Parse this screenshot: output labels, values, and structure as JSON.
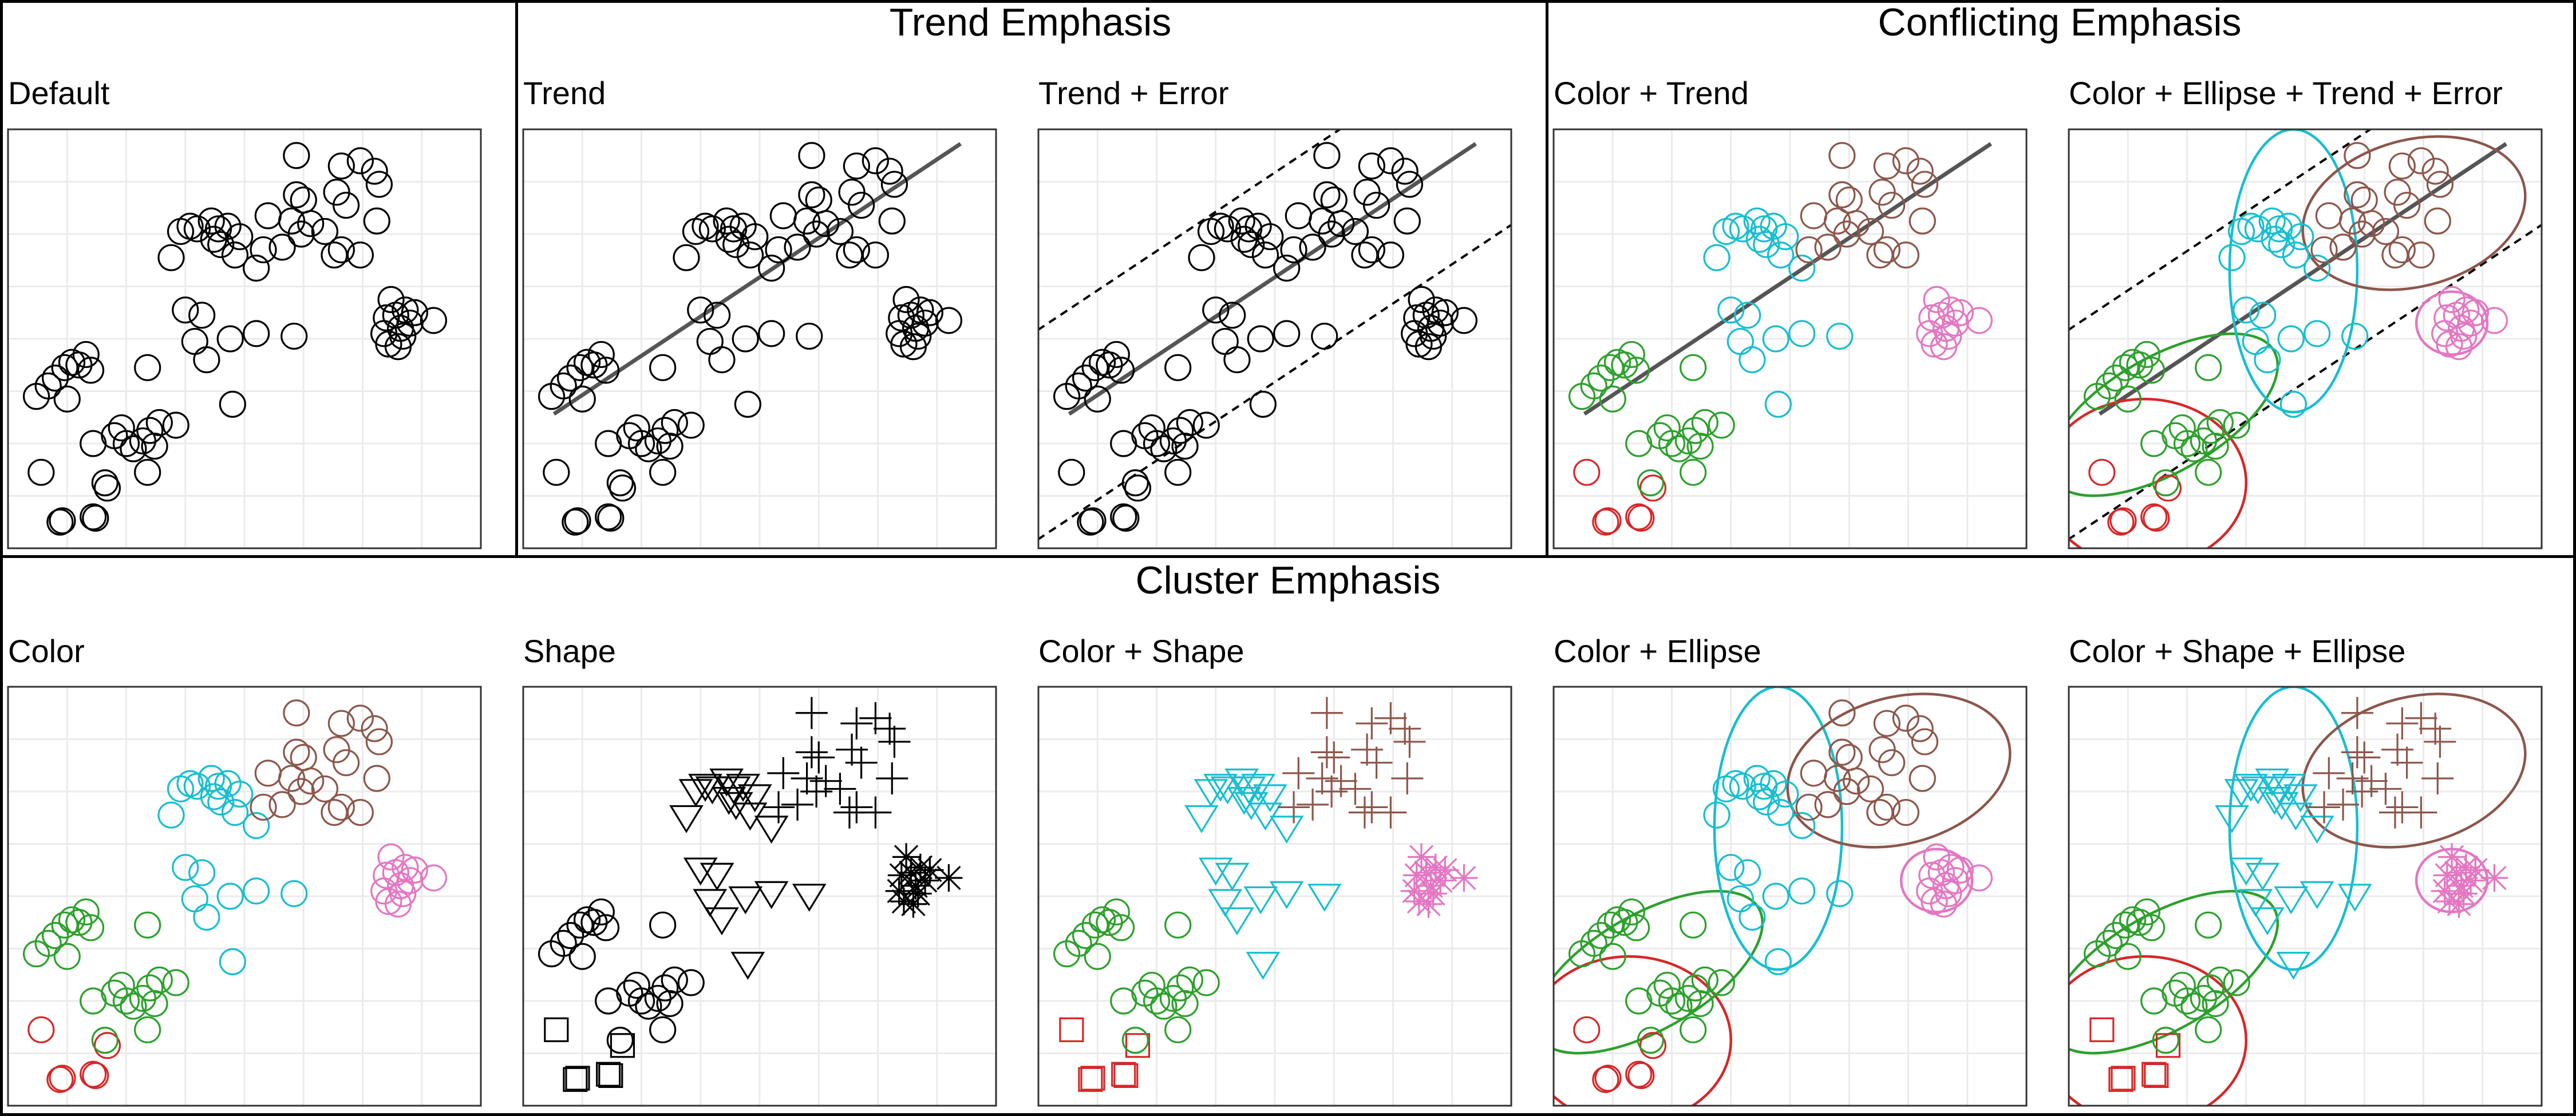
{
  "groups": [
    {
      "title": "Trend Emphasis"
    },
    {
      "title": "Conflicting Emphasis"
    },
    {
      "title": "Cluster Emphasis"
    }
  ],
  "colors": {
    "c1": "#d62728",
    "c2": "#2ca02c",
    "c3": "#17becf",
    "c4": "#8c564b",
    "c5": "#e377c2",
    "mono": "#000000",
    "trend_line": "#555555",
    "grid": "#ebebeb",
    "panel_border": "#333333"
  },
  "chart_data": {
    "type": "scatter",
    "xlim": [
      0,
      20
    ],
    "ylim": [
      0,
      16
    ],
    "grid": true,
    "trend": {
      "intercept": 4.35,
      "slope": 0.6,
      "error_offset": 4.0
    },
    "clusters": [
      {
        "id": 1,
        "shape": "square",
        "ellipse": {
          "cx": 3.2,
          "cy": 2.5,
          "rx": 4.3,
          "ry": 3.2,
          "angle": 0
        }
      },
      {
        "id": 2,
        "shape": "circle",
        "ellipse": {
          "cx": 4.0,
          "cy": 5.1,
          "rx": 5.4,
          "ry": 2.2,
          "angle": 30
        }
      },
      {
        "id": 3,
        "shape": "triangle-down",
        "ellipse": {
          "cx": 9.5,
          "cy": 10.6,
          "rx": 2.7,
          "ry": 5.4,
          "angle": 0
        }
      },
      {
        "id": 4,
        "shape": "plus",
        "ellipse": {
          "cx": 14.6,
          "cy": 12.8,
          "rx": 4.8,
          "ry": 2.8,
          "angle": 15
        }
      },
      {
        "id": 5,
        "shape": "star",
        "ellipse": {
          "cx": 16.2,
          "cy": 8.6,
          "rx": 1.5,
          "ry": 1.2,
          "angle": 0
        }
      }
    ],
    "points": [
      {
        "x": 3.6,
        "y": 1.2,
        "c": 1
      },
      {
        "x": 2.2,
        "y": 1.0,
        "c": 1
      },
      {
        "x": 1.4,
        "y": 2.9,
        "c": 1
      },
      {
        "x": 4.2,
        "y": 2.3,
        "c": 1
      },
      {
        "x": 3.7,
        "y": 1.15,
        "c": 1
      },
      {
        "x": 2.3,
        "y": 1.05,
        "c": 1
      },
      {
        "x": 1.2,
        "y": 5.8,
        "c": 2
      },
      {
        "x": 1.7,
        "y": 6.2,
        "c": 2
      },
      {
        "x": 2.0,
        "y": 6.5,
        "c": 2
      },
      {
        "x": 2.4,
        "y": 6.9,
        "c": 2
      },
      {
        "x": 3.0,
        "y": 7.0,
        "c": 2
      },
      {
        "x": 3.5,
        "y": 6.8,
        "c": 2
      },
      {
        "x": 3.3,
        "y": 7.4,
        "c": 2
      },
      {
        "x": 2.7,
        "y": 7.1,
        "c": 2
      },
      {
        "x": 2.5,
        "y": 5.7,
        "c": 2
      },
      {
        "x": 5.9,
        "y": 6.9,
        "c": 2
      },
      {
        "x": 3.6,
        "y": 4.0,
        "c": 2
      },
      {
        "x": 4.5,
        "y": 4.3,
        "c": 2
      },
      {
        "x": 5.0,
        "y": 4.0,
        "c": 2
      },
      {
        "x": 5.7,
        "y": 4.1,
        "c": 2
      },
      {
        "x": 5.3,
        "y": 3.8,
        "c": 2
      },
      {
        "x": 6.0,
        "y": 4.5,
        "c": 2
      },
      {
        "x": 4.8,
        "y": 4.6,
        "c": 2
      },
      {
        "x": 7.1,
        "y": 4.7,
        "c": 2
      },
      {
        "x": 6.4,
        "y": 4.8,
        "c": 2
      },
      {
        "x": 6.2,
        "y": 3.9,
        "c": 2
      },
      {
        "x": 5.9,
        "y": 2.9,
        "c": 2
      },
      {
        "x": 4.1,
        "y": 2.5,
        "c": 2
      },
      {
        "x": 7.3,
        "y": 12.1,
        "c": 3
      },
      {
        "x": 7.7,
        "y": 12.3,
        "c": 3
      },
      {
        "x": 8.0,
        "y": 12.2,
        "c": 3
      },
      {
        "x": 8.6,
        "y": 12.5,
        "c": 3
      },
      {
        "x": 8.9,
        "y": 12.2,
        "c": 3
      },
      {
        "x": 9.3,
        "y": 12.3,
        "c": 3
      },
      {
        "x": 8.7,
        "y": 11.8,
        "c": 3
      },
      {
        "x": 9.0,
        "y": 11.6,
        "c": 3
      },
      {
        "x": 9.6,
        "y": 11.2,
        "c": 3
      },
      {
        "x": 10.5,
        "y": 10.7,
        "c": 3
      },
      {
        "x": 6.9,
        "y": 11.1,
        "c": 3
      },
      {
        "x": 7.5,
        "y": 9.1,
        "c": 3
      },
      {
        "x": 8.2,
        "y": 8.9,
        "c": 3
      },
      {
        "x": 7.9,
        "y": 7.9,
        "c": 3
      },
      {
        "x": 9.4,
        "y": 8.0,
        "c": 3
      },
      {
        "x": 10.5,
        "y": 8.2,
        "c": 3
      },
      {
        "x": 8.4,
        "y": 7.2,
        "c": 3
      },
      {
        "x": 12.1,
        "y": 8.1,
        "c": 3
      },
      {
        "x": 9.5,
        "y": 5.5,
        "c": 3
      },
      {
        "x": 9.8,
        "y": 11.9,
        "c": 3
      },
      {
        "x": 12.2,
        "y": 15.0,
        "c": 4
      },
      {
        "x": 12.5,
        "y": 13.3,
        "c": 4
      },
      {
        "x": 12.0,
        "y": 12.5,
        "c": 4
      },
      {
        "x": 11.0,
        "y": 12.7,
        "c": 4
      },
      {
        "x": 11.6,
        "y": 11.5,
        "c": 4
      },
      {
        "x": 10.8,
        "y": 11.4,
        "c": 4
      },
      {
        "x": 12.2,
        "y": 13.5,
        "c": 4
      },
      {
        "x": 12.4,
        "y": 12.0,
        "c": 4
      },
      {
        "x": 14.9,
        "y": 14.8,
        "c": 4
      },
      {
        "x": 14.1,
        "y": 14.6,
        "c": 4
      },
      {
        "x": 14.3,
        "y": 13.1,
        "c": 4
      },
      {
        "x": 15.5,
        "y": 14.4,
        "c": 4
      },
      {
        "x": 15.7,
        "y": 13.9,
        "c": 4
      },
      {
        "x": 15.6,
        "y": 12.5,
        "c": 4
      },
      {
        "x": 14.9,
        "y": 11.2,
        "c": 4
      },
      {
        "x": 14.1,
        "y": 11.4,
        "c": 4
      },
      {
        "x": 13.8,
        "y": 11.2,
        "c": 4
      },
      {
        "x": 13.4,
        "y": 12.1,
        "c": 4
      },
      {
        "x": 13.9,
        "y": 13.6,
        "c": 4
      },
      {
        "x": 12.8,
        "y": 12.4,
        "c": 4
      },
      {
        "x": 16.4,
        "y": 8.9,
        "c": 5
      },
      {
        "x": 17.0,
        "y": 8.6,
        "c": 5
      },
      {
        "x": 16.8,
        "y": 9.1,
        "c": 5
      },
      {
        "x": 17.2,
        "y": 9.0,
        "c": 5
      },
      {
        "x": 15.9,
        "y": 8.2,
        "c": 5
      },
      {
        "x": 16.1,
        "y": 7.8,
        "c": 5
      },
      {
        "x": 16.7,
        "y": 8.1,
        "c": 5
      },
      {
        "x": 16.5,
        "y": 7.7,
        "c": 5
      },
      {
        "x": 18.0,
        "y": 8.7,
        "c": 5
      },
      {
        "x": 16.2,
        "y": 9.5,
        "c": 5
      },
      {
        "x": 16.0,
        "y": 8.8,
        "c": 5
      },
      {
        "x": 16.6,
        "y": 8.4,
        "c": 5
      }
    ],
    "panels": [
      {
        "title": "Default",
        "color": false,
        "shape": false,
        "ellipse": false,
        "trend": false,
        "error": false
      },
      {
        "title": "Trend",
        "color": false,
        "shape": false,
        "ellipse": false,
        "trend": true,
        "error": false
      },
      {
        "title": "Trend + Error",
        "color": false,
        "shape": false,
        "ellipse": false,
        "trend": true,
        "error": true
      },
      {
        "title": "Color + Trend",
        "color": true,
        "shape": false,
        "ellipse": false,
        "trend": true,
        "error": false
      },
      {
        "title": "Color + Ellipse + Trend + Error",
        "color": true,
        "shape": false,
        "ellipse": true,
        "trend": true,
        "error": true
      },
      {
        "title": "Color",
        "color": true,
        "shape": false,
        "ellipse": false,
        "trend": false,
        "error": false
      },
      {
        "title": "Shape",
        "color": false,
        "shape": true,
        "ellipse": false,
        "trend": false,
        "error": false
      },
      {
        "title": "Color + Shape",
        "color": true,
        "shape": true,
        "ellipse": false,
        "trend": false,
        "error": false
      },
      {
        "title": "Color + Ellipse",
        "color": true,
        "shape": false,
        "ellipse": true,
        "trend": false,
        "error": false
      },
      {
        "title": "Color + Shape + Ellipse",
        "color": true,
        "shape": true,
        "ellipse": true,
        "trend": false,
        "error": false
      }
    ]
  }
}
